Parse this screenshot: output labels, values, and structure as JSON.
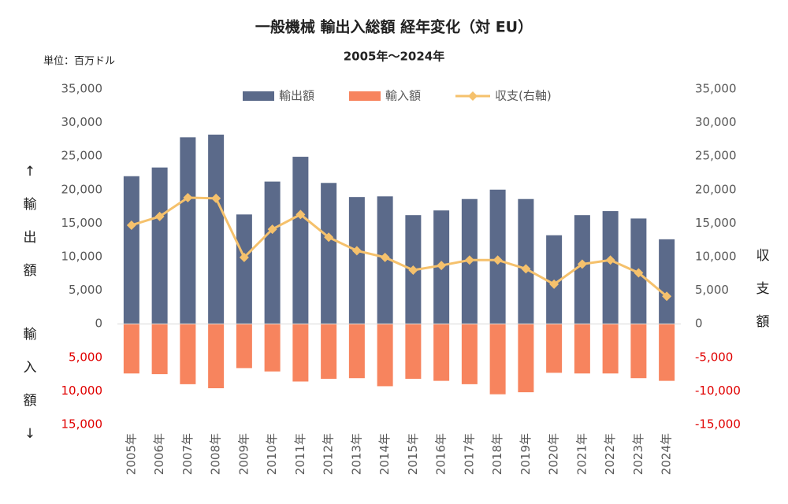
{
  "chart_data": {
    "type": "bar",
    "title": "一般機械 輸出入総額 経年変化（対 EU）",
    "subtitle": "2005年～2024年",
    "unit_label": "単位：百万ドル",
    "ylabel_top": "↑輸出額",
    "ylabel_bottom": "輸入額↓",
    "y2label": "収支額",
    "categories": [
      "2005年",
      "2006年",
      "2007年",
      "2008年",
      "2009年",
      "2010年",
      "2011年",
      "2012年",
      "2013年",
      "2014年",
      "2015年",
      "2016年",
      "2017年",
      "2018年",
      "2019年",
      "2020年",
      "2021年",
      "2022年",
      "2023年",
      "2024年"
    ],
    "series": [
      {
        "name": "輸出額",
        "color": "#5b6a8a",
        "values": [
          22000,
          23300,
          27800,
          28200,
          16300,
          21200,
          24900,
          21000,
          18900,
          19000,
          16200,
          16900,
          18600,
          20000,
          18600,
          13200,
          16200,
          16800,
          15700,
          12600
        ]
      },
      {
        "name": "輸入額",
        "color": "#f7845e",
        "values": [
          -7400,
          -7500,
          -9000,
          -9600,
          -6600,
          -7100,
          -8600,
          -8200,
          -8100,
          -9300,
          -8200,
          -8500,
          -9000,
          -10500,
          -10200,
          -7300,
          -7400,
          -7400,
          -8100,
          -8500
        ]
      },
      {
        "name": "収支(右軸)",
        "color": "#f5c16c",
        "type": "line",
        "axis": "y2",
        "values": [
          14700,
          16000,
          18800,
          18700,
          9900,
          14100,
          16300,
          12900,
          10900,
          9900,
          8000,
          8700,
          9500,
          9500,
          8200,
          5900,
          8900,
          9500,
          7600,
          4100
        ]
      }
    ],
    "ylim": [
      -15000,
      35000
    ],
    "yticks": [
      {
        "value": 35000,
        "label": "35,000"
      },
      {
        "value": 30000,
        "label": "30,000"
      },
      {
        "value": 25000,
        "label": "25,000"
      },
      {
        "value": 20000,
        "label": "20,000"
      },
      {
        "value": 15000,
        "label": "15,000"
      },
      {
        "value": 10000,
        "label": "10,000"
      },
      {
        "value": 5000,
        "label": "5,000"
      },
      0,
      {
        "value": -5000,
        "label": "5,000"
      },
      {
        "value": -10000,
        "label": "10,000"
      },
      {
        "value": -15000,
        "label": "15,000"
      }
    ],
    "y2lim": [
      -15000,
      35000
    ],
    "y2ticks": [
      {
        "value": 35000,
        "label": "35,000"
      },
      {
        "value": 30000,
        "label": "30,000"
      },
      {
        "value": 25000,
        "label": "25,000"
      },
      {
        "value": 20000,
        "label": "20,000"
      },
      {
        "value": 15000,
        "label": "15,000"
      },
      {
        "value": 10000,
        "label": "10,000"
      },
      {
        "value": 5000,
        "label": "5,000"
      },
      0,
      {
        "value": -5000,
        "label": "-5,000"
      },
      {
        "value": -10000,
        "label": "-10,000"
      },
      {
        "value": -15000,
        "label": "-15,000"
      }
    ],
    "negative_tick_color": "#e00000",
    "legend": "top"
  }
}
